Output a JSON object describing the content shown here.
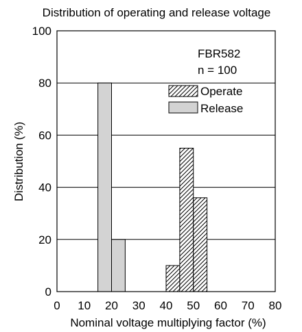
{
  "chart_data": {
    "type": "bar",
    "title": "Distribution of operating and release voltage",
    "xlabel": "Nominal voltage multiplying factor (%)",
    "ylabel": "Distribution (%)",
    "xlim": [
      0,
      80
    ],
    "ylim": [
      0,
      100
    ],
    "xticks": [
      0,
      10,
      20,
      30,
      40,
      50,
      60,
      70,
      80
    ],
    "yticks": [
      0,
      20,
      40,
      60,
      80,
      100
    ],
    "grid": "horizontal",
    "annotations": [
      "FBR582",
      "n = 100"
    ],
    "legend_position": "top-right",
    "series": [
      {
        "name": "Operate",
        "style": "hatched",
        "bins": [
          {
            "x0": 40,
            "x1": 45,
            "value": 10
          },
          {
            "x0": 45,
            "x1": 50,
            "value": 55
          },
          {
            "x0": 50,
            "x1": 55,
            "value": 36
          }
        ]
      },
      {
        "name": "Release",
        "style": "gray",
        "color": "#d3d3d3",
        "bins": [
          {
            "x0": 15,
            "x1": 20,
            "value": 80
          },
          {
            "x0": 20,
            "x1": 25,
            "value": 20
          }
        ]
      }
    ]
  }
}
